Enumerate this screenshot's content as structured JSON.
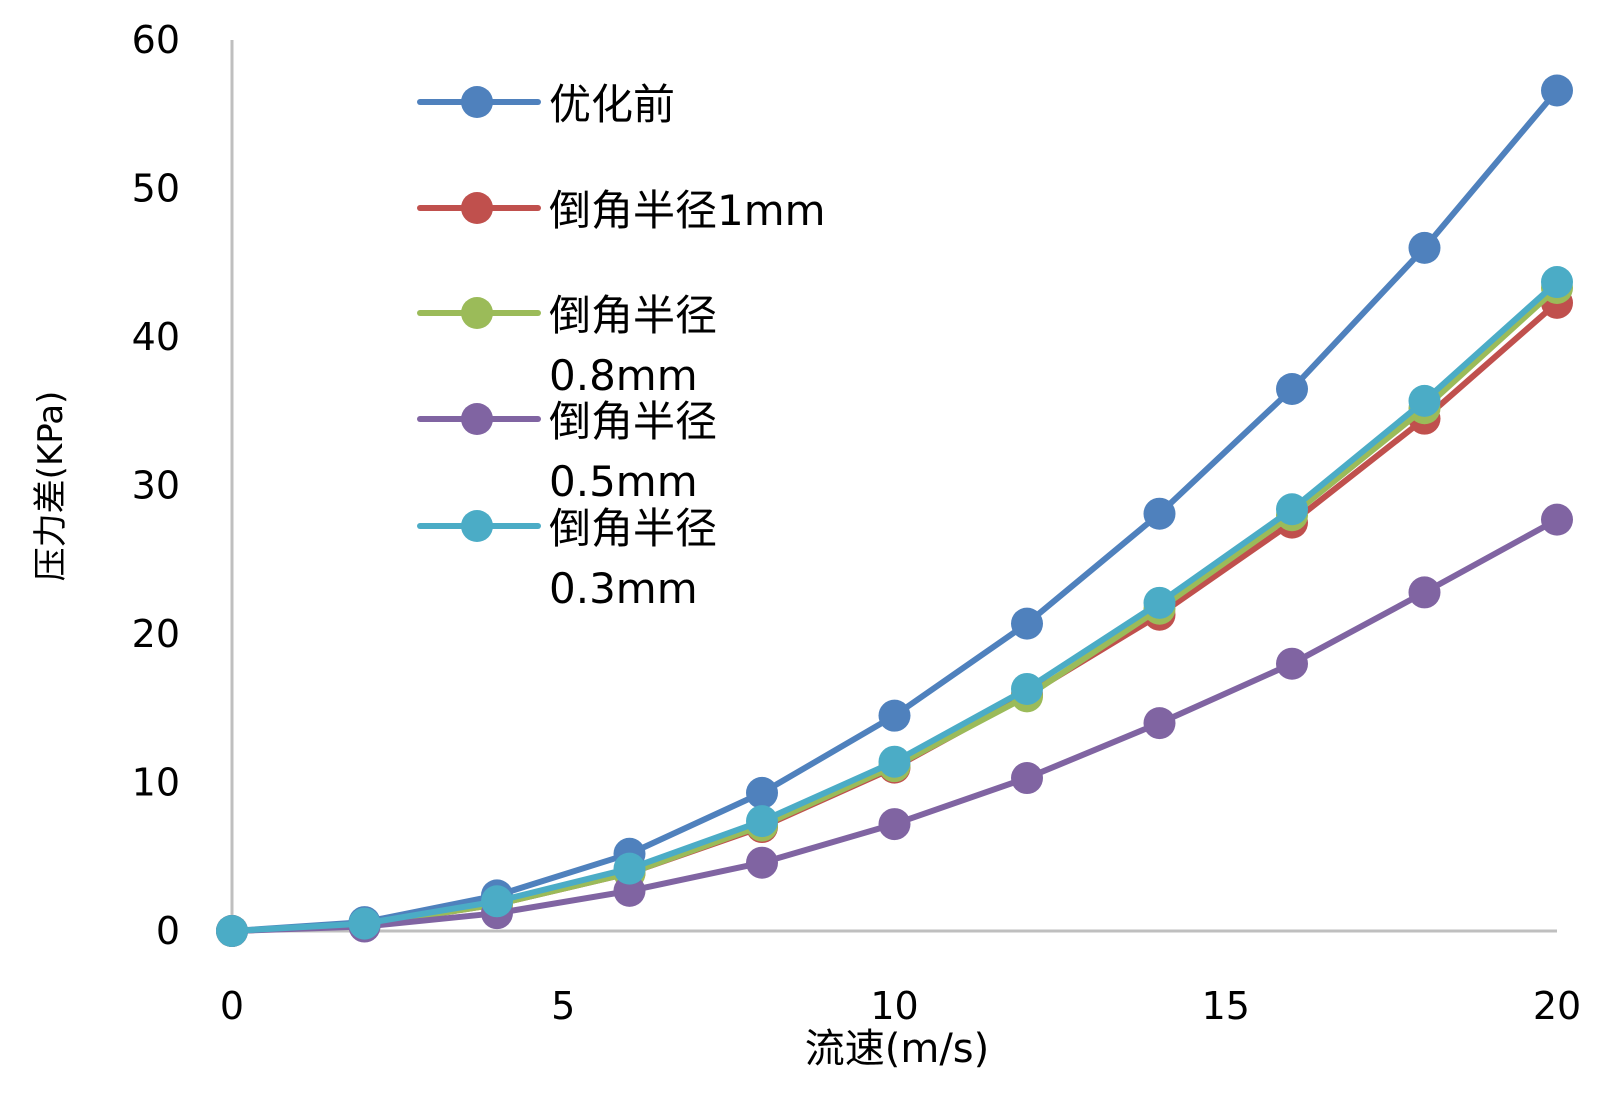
{
  "chart_data": {
    "type": "line",
    "title": "",
    "xlabel": "流速(m/s)",
    "ylabel": "压力差(KPa)",
    "xlim": [
      0,
      20
    ],
    "ylim": [
      0,
      60
    ],
    "x_ticks": [
      "0",
      "5",
      "10",
      "15",
      "20"
    ],
    "y_ticks": [
      "0",
      "10",
      "20",
      "30",
      "40",
      "50",
      "60"
    ],
    "grid": false,
    "legend_position": "top-left, inside",
    "x": [
      0,
      2,
      4,
      6,
      8,
      10,
      12,
      14,
      16,
      18,
      20
    ],
    "series": [
      {
        "name": "优化前",
        "name_lines": [
          "优化前"
        ],
        "color": "#4f81bd",
        "values": [
          0,
          0.6,
          2.4,
          5.2,
          9.3,
          14.5,
          20.7,
          28.1,
          36.5,
          46.0,
          56.6
        ]
      },
      {
        "name": "倒角半径1mm",
        "name_lines": [
          "倒角半径1mm"
        ],
        "color": "#c0504d",
        "values": [
          0,
          0.4,
          1.8,
          3.9,
          7.0,
          11.0,
          15.9,
          21.3,
          27.5,
          34.5,
          42.3
        ]
      },
      {
        "name": "倒角半径0.8mm",
        "name_lines": [
          "倒角半径",
          "0.8mm"
        ],
        "color": "#9bbb59",
        "values": [
          0,
          0.4,
          1.8,
          3.9,
          7.1,
          11.1,
          15.8,
          21.7,
          28.0,
          35.2,
          43.3
        ]
      },
      {
        "name": "倒角半径0.5mm",
        "name_lines": [
          "倒角半径",
          "0.5mm"
        ],
        "color": "#8064a2",
        "values": [
          0,
          0.3,
          1.2,
          2.7,
          4.6,
          7.2,
          10.3,
          14.0,
          18.0,
          22.8,
          27.7
        ]
      },
      {
        "name": "倒角半径0.3mm",
        "name_lines": [
          "倒角半径",
          "0.3mm"
        ],
        "color": "#4bacc6",
        "values": [
          0,
          0.5,
          2.0,
          4.2,
          7.4,
          11.4,
          16.3,
          22.1,
          28.4,
          35.7,
          43.7
        ]
      }
    ]
  }
}
